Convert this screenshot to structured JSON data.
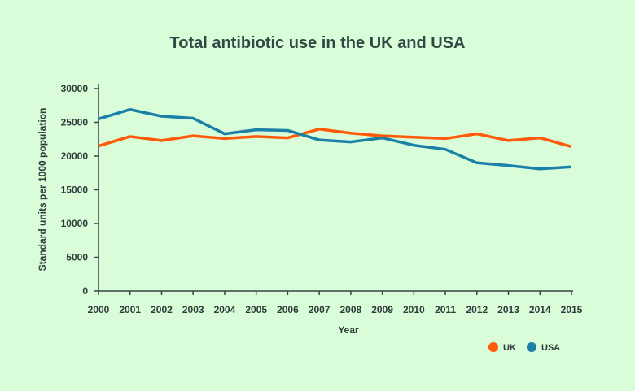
{
  "chart_data": {
    "type": "line",
    "title": "Total antibiotic use in the UK and USA",
    "xlabel": "Year",
    "ylabel": "Standard units per 1000 population",
    "x": [
      2000,
      2001,
      2002,
      2003,
      2004,
      2005,
      2006,
      2007,
      2008,
      2009,
      2010,
      2011,
      2012,
      2013,
      2014,
      2015
    ],
    "ylim": [
      0,
      30000
    ],
    "yticks": [
      0,
      5000,
      10000,
      15000,
      20000,
      25000,
      30000
    ],
    "grid": false,
    "legend": "bottom-right",
    "series": [
      {
        "name": "UK",
        "color": "#ff5a0a",
        "values": [
          21500,
          22900,
          22300,
          23000,
          22600,
          22900,
          22700,
          24000,
          23400,
          23000,
          22800,
          22600,
          23300,
          22300,
          22700,
          21400
        ]
      },
      {
        "name": "USA",
        "color": "#1a80a8",
        "values": [
          25500,
          26900,
          25900,
          25600,
          23300,
          23900,
          23800,
          22400,
          22100,
          22700,
          21600,
          21000,
          19000,
          18600,
          18100,
          18400
        ]
      }
    ]
  }
}
